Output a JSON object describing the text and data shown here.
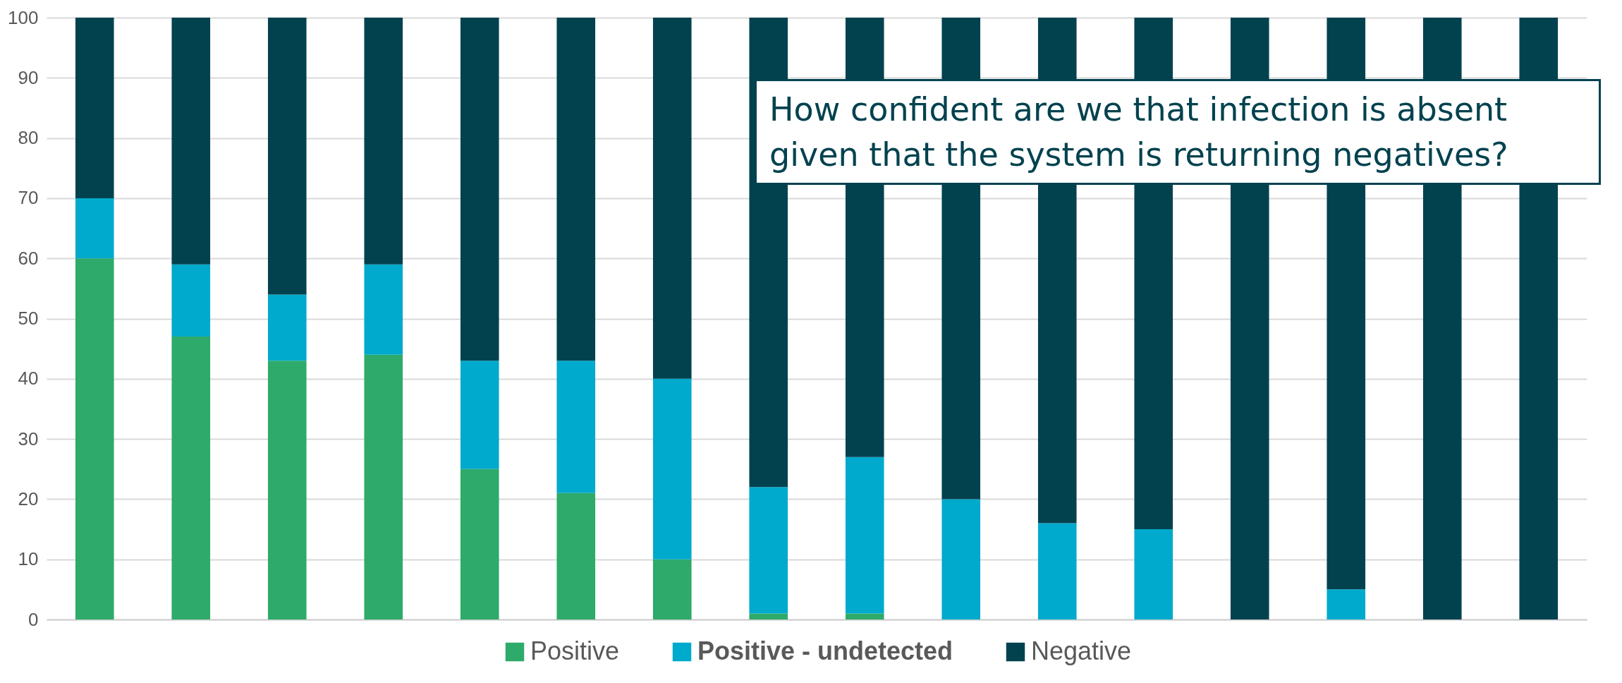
{
  "chart_data": {
    "type": "bar",
    "stacked": true,
    "categories": [
      null,
      null,
      null,
      null,
      null,
      null,
      null,
      null,
      null,
      null,
      null,
      null,
      null,
      null,
      null,
      null
    ],
    "series": [
      {
        "name": "Positive",
        "color": "#2eaa6a",
        "values": [
          60,
          47,
          43,
          44,
          25,
          21,
          10,
          1,
          1,
          0,
          0,
          0,
          0,
          0,
          0,
          0
        ]
      },
      {
        "name": "Positive - undetected",
        "color": "#00aacc",
        "values": [
          10,
          12,
          11,
          15,
          18,
          22,
          30,
          21,
          26,
          20,
          16,
          15,
          0,
          5,
          0,
          0
        ]
      },
      {
        "name": "Negative",
        "color": "#02424f",
        "values": [
          30,
          41,
          46,
          41,
          57,
          57,
          60,
          78,
          73,
          80,
          84,
          85,
          100,
          95,
          100,
          100
        ]
      }
    ],
    "ylim": [
      0,
      100
    ],
    "yticks": [
      0,
      10,
      20,
      30,
      40,
      50,
      60,
      70,
      80,
      90,
      100
    ],
    "grid": "y",
    "legend": "bottom",
    "tick_labels": "y",
    "annotations": [
      "How confident are we that infection is absent given that the system is returning negatives?"
    ]
  }
}
